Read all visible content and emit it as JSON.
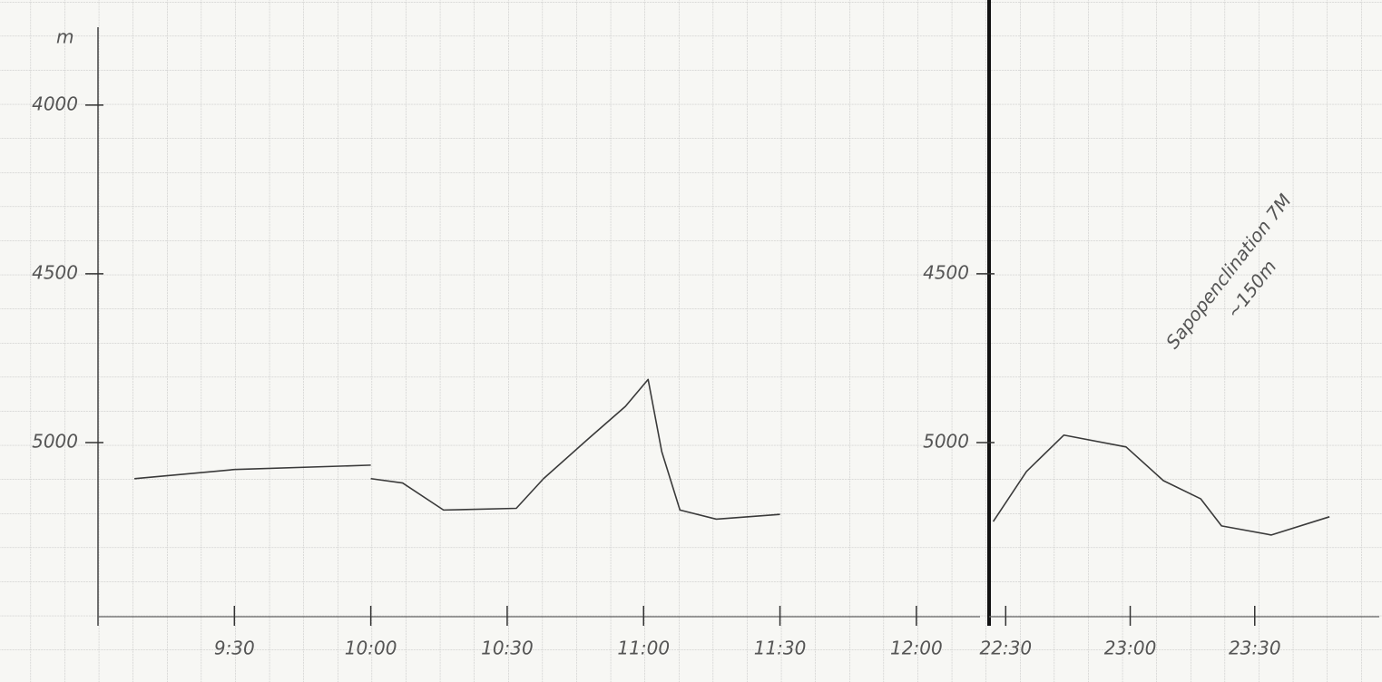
{
  "chart_data": [
    {
      "type": "line",
      "y_label": "m",
      "y_inverted": true,
      "color": "#3a3a3a",
      "x": [
        548,
        570,
        600,
        605,
        600,
        607,
        616,
        632,
        638,
        648,
        656,
        661,
        664,
        668,
        676,
        690
      ],
      "values": [
        5107,
        5080,
        5067,
        null,
        5107,
        5120,
        5200,
        5195,
        5107,
        4987,
        4893,
        4813,
        5027,
        5200,
        5227,
        5213
      ],
      "xlim": [
        540,
        734
      ],
      "ylim": [
        5500,
        3780
      ],
      "xticks": [
        {
          "value": 570,
          "label": "9:30"
        },
        {
          "value": 600,
          "label": "10:00"
        },
        {
          "value": 630,
          "label": "10:30"
        },
        {
          "value": 660,
          "label": "11:00"
        },
        {
          "value": 690,
          "label": "11:30"
        },
        {
          "value": 720,
          "label": "12:00"
        }
      ],
      "yticks": [
        4000,
        4500,
        5000
      ]
    },
    {
      "type": "line",
      "y_inverted": true,
      "color": "#3a3a3a",
      "x": [
        1347,
        1355,
        1364,
        1379,
        1388,
        1397,
        1402,
        1414,
        1428
      ],
      "values": [
        5234,
        5086,
        4978,
        5013,
        5113,
        5167,
        5247,
        5274,
        5220
      ],
      "xlim": [
        1346,
        1440
      ],
      "ylim": [
        5500,
        3780
      ],
      "xticks": [
        {
          "value": 1350,
          "label": "22:30"
        },
        {
          "value": 1380,
          "label": "23:00"
        },
        {
          "value": 1410,
          "label": "23:30"
        }
      ],
      "yticks": [
        4500,
        5000
      ],
      "annotations": [
        "Sapopenclination 7M",
        "~150m"
      ]
    }
  ]
}
